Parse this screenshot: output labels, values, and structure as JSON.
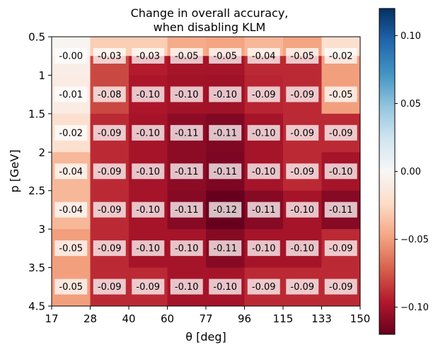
{
  "chart_data": {
    "type": "heatmap",
    "title_lines": [
      "Change in overall accuracy,",
      "when disabling KLM"
    ],
    "xlabel": "θ [deg]",
    "ylabel": "p [GeV]",
    "x_tick_labels": [
      "17",
      "28",
      "40",
      "60",
      "77",
      "96",
      "115",
      "133",
      "150"
    ],
    "y_tick_labels": [
      "0.5",
      "1",
      "1.5",
      "2",
      "2.5",
      "3",
      "3.5",
      "4.5"
    ],
    "colorbar": {
      "range": [
        -0.12,
        0.12
      ],
      "tick_values": [
        0.1,
        0.05,
        0.0,
        -0.05,
        -0.1
      ],
      "tick_labels": [
        "0.10",
        "0.05",
        "0.00",
        "−0.05",
        "−0.10"
      ],
      "colormap": "RdBu"
    },
    "rows": [
      {
        "y_range": [
          "0.5",
          "1.5"
        ],
        "labels": [
          "-0.00",
          "-0.03",
          "-0.03",
          "-0.05",
          "-0.05",
          "-0.04",
          "-0.05",
          "-0.02"
        ],
        "values_top": [
          -0.003,
          -0.03,
          -0.03,
          -0.045,
          -0.048,
          -0.04,
          -0.048,
          -0.02
        ],
        "values_bottom": [
          -0.008,
          -0.08,
          -0.095,
          -0.1,
          -0.1,
          -0.09,
          -0.09,
          -0.05
        ]
      },
      {
        "y_range": [
          "1",
          "1.5"
        ],
        "labels": [
          "-0.01",
          "-0.08",
          "-0.10",
          "-0.10",
          "-0.10",
          "-0.09",
          "-0.09",
          "-0.05"
        ],
        "values": [
          -0.01,
          -0.08,
          -0.098,
          -0.101,
          -0.102,
          -0.092,
          -0.09,
          -0.05
        ]
      },
      {
        "y_range": [
          "1.5",
          "2"
        ],
        "labels": [
          "-0.02",
          "-0.09",
          "-0.10",
          "-0.11",
          "-0.11",
          "-0.10",
          "-0.09",
          "-0.09"
        ],
        "values": [
          -0.02,
          -0.09,
          -0.1,
          -0.108,
          -0.112,
          -0.1,
          -0.09,
          -0.09
        ]
      },
      {
        "y_range": [
          "2",
          "2.5"
        ],
        "labels": [
          "-0.04",
          "-0.09",
          "-0.10",
          "-0.11",
          "-0.11",
          "-0.10",
          "-0.09",
          "-0.10"
        ],
        "values": [
          -0.04,
          -0.09,
          -0.1,
          -0.108,
          -0.113,
          -0.1,
          -0.09,
          -0.1
        ]
      },
      {
        "y_range": [
          "2.5",
          "3"
        ],
        "labels": [
          "-0.04",
          "-0.09",
          "-0.10",
          "-0.11",
          "-0.12",
          "-0.11",
          "-0.10",
          "-0.11"
        ],
        "values": [
          -0.04,
          -0.09,
          -0.1,
          -0.11,
          -0.12,
          -0.11,
          -0.1,
          -0.11
        ]
      },
      {
        "y_range": [
          "3",
          "3.5"
        ],
        "labels": [
          "-0.05",
          "-0.09",
          "-0.10",
          "-0.10",
          "-0.11",
          "-0.10",
          "-0.10",
          "-0.09"
        ],
        "values": [
          -0.05,
          -0.09,
          -0.1,
          -0.1,
          -0.11,
          -0.1,
          -0.1,
          -0.09
        ]
      },
      {
        "y_range": [
          "3.5",
          "4.5"
        ],
        "labels": [
          "-0.05",
          "-0.09",
          "-0.09",
          "-0.10",
          "-0.10",
          "-0.09",
          "-0.09",
          "-0.09"
        ],
        "values": [
          -0.05,
          -0.09,
          -0.09,
          -0.1,
          -0.1,
          -0.09,
          -0.09,
          -0.09
        ]
      }
    ]
  }
}
